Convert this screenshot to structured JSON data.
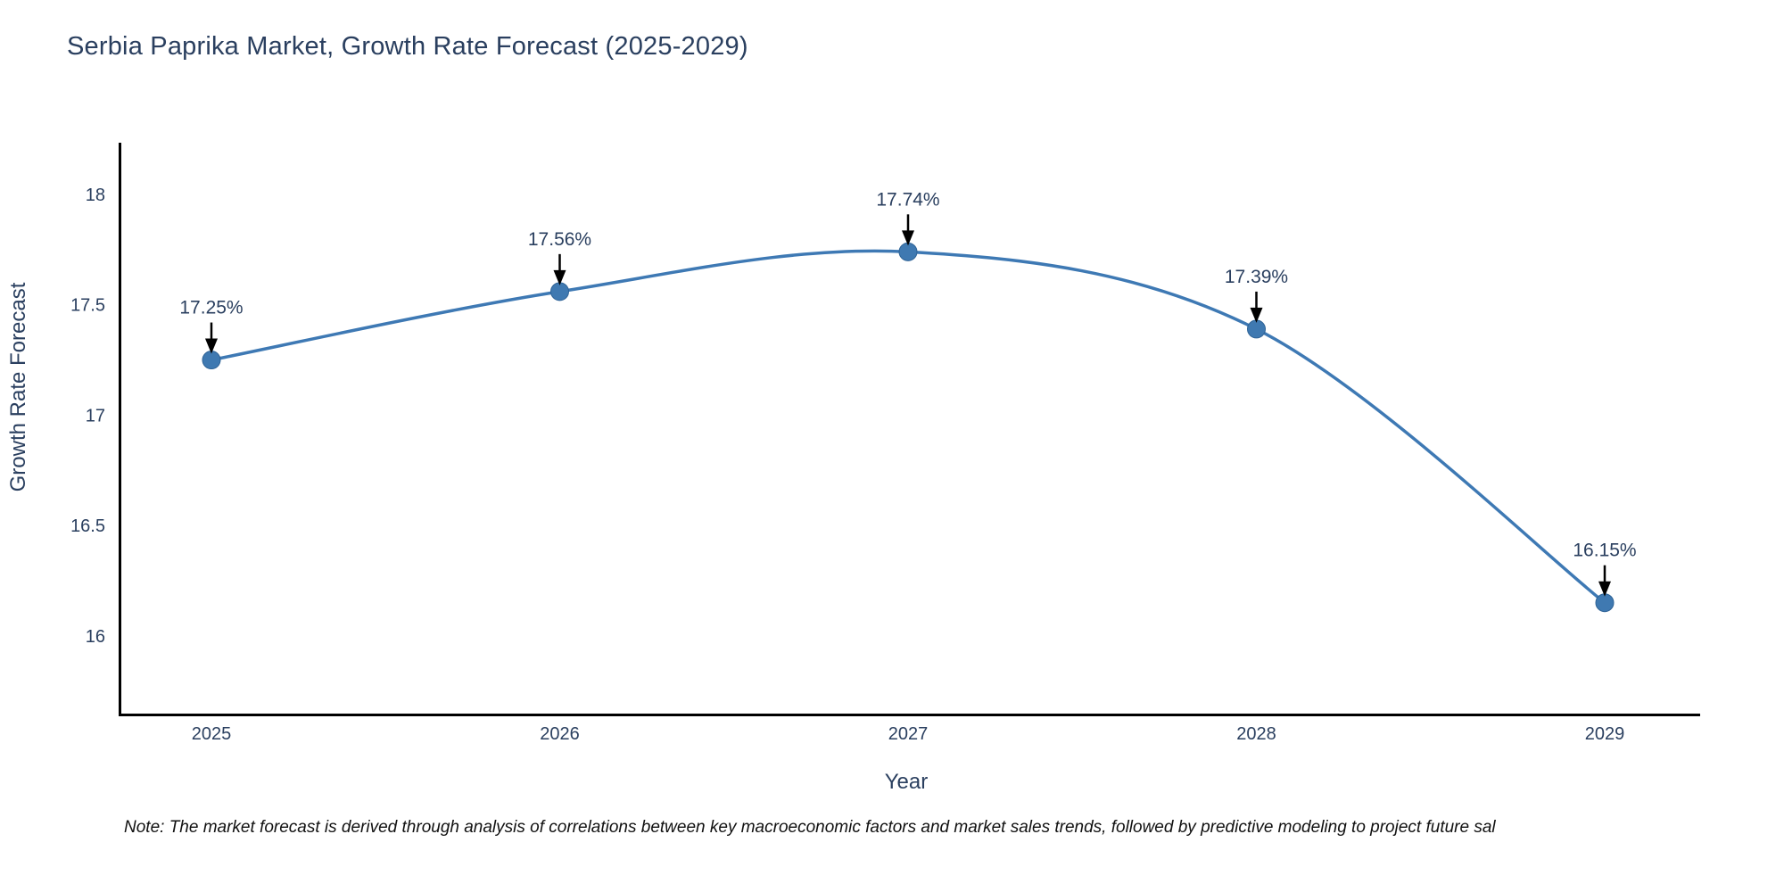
{
  "title": "Serbia Paprika Market, Growth Rate Forecast (2025-2029)",
  "note": "Note: The market forecast is derived through analysis of correlations between key macroeconomic factors and market sales trends, followed by predictive modeling to project future sal",
  "chart_data": {
    "type": "line",
    "title": "Serbia Paprika Market, Growth Rate Forecast (2025-2029)",
    "xlabel": "Year",
    "ylabel": "Growth Rate Forecast",
    "x": [
      2025,
      2026,
      2027,
      2028,
      2029
    ],
    "xtick_labels": [
      "2025",
      "2026",
      "2027",
      "2028",
      "2029"
    ],
    "values": [
      17.25,
      17.56,
      17.74,
      17.39,
      16.15
    ],
    "point_labels": [
      "17.25%",
      "17.56%",
      "17.74%",
      "17.39%",
      "16.15%"
    ],
    "ytick_labels": [
      "16",
      "16.5",
      "17",
      "17.5",
      "18"
    ],
    "yticks": [
      16,
      16.5,
      17,
      17.5,
      18
    ],
    "ylim": [
      15.64,
      18.23
    ],
    "grid": false,
    "legend": "none",
    "line_shape": "spline",
    "colors": {
      "line": "#3e79b4",
      "marker_fill": "#3f79b1",
      "marker_edge": "#2f6396",
      "axis_line": "#000000",
      "tick_text": "#2a3f5f",
      "title_text": "#2a3f5f",
      "annotation_text": "#2a3f5f",
      "annotation_arrow": "#000000"
    }
  }
}
